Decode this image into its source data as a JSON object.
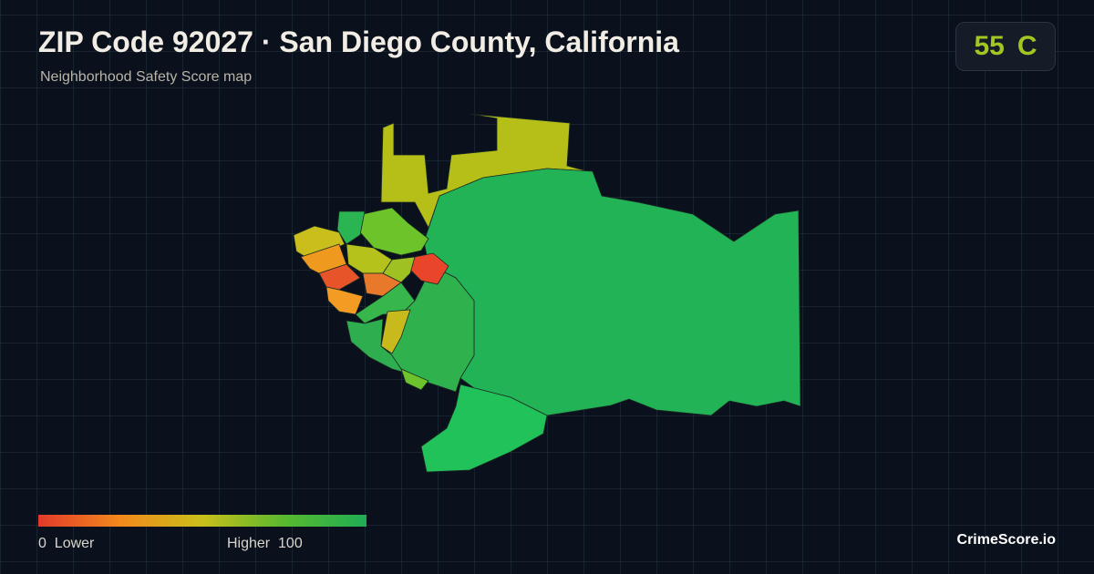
{
  "header": {
    "title": "ZIP Code 92027 · San Diego County, California",
    "subtitle": "Neighborhood Safety Score map"
  },
  "score": {
    "value": 55,
    "grade": "C"
  },
  "legend": {
    "min": 0,
    "min_label": "Lower",
    "max_label": "Higher",
    "max": 100
  },
  "brand": "CrimeScore.io"
}
